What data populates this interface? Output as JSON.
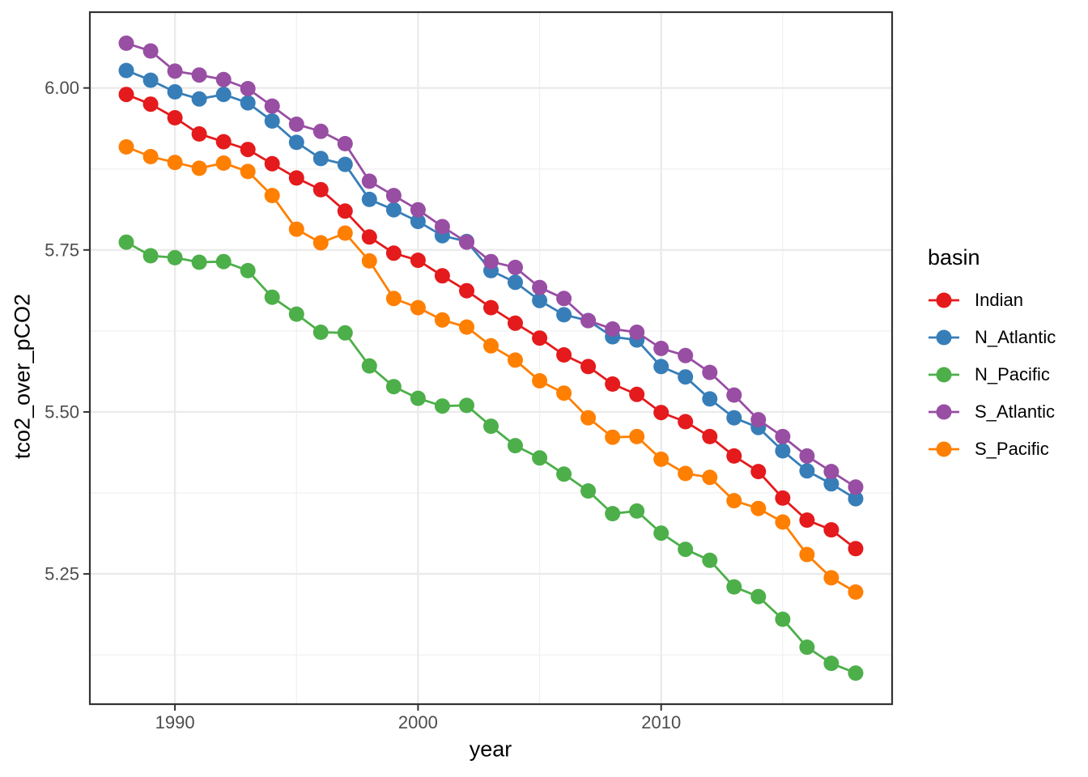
{
  "chart_data": {
    "type": "line",
    "title": "",
    "xlabel": "year",
    "ylabel": "tco2_over_pCO2",
    "legend_title": "basin",
    "legend_position": "right",
    "grid": true,
    "xlim": [
      1986.5,
      2019.5
    ],
    "ylim": [
      5.049,
      6.117
    ],
    "x_ticks": [
      1990,
      2000,
      2010
    ],
    "x_tick_labels": [
      "1990",
      "2000",
      "2010"
    ],
    "x_minor_ticks": [
      1995,
      2005,
      2015
    ],
    "y_ticks": [
      5.25,
      5.5,
      5.75,
      6.0
    ],
    "y_tick_labels": [
      "5.25",
      "5.50",
      "5.75",
      "6.00"
    ],
    "y_minor_ticks": [
      5.125,
      5.375,
      5.625,
      5.875
    ],
    "x": [
      1988,
      1989,
      1990,
      1991,
      1992,
      1993,
      1994,
      1995,
      1996,
      1997,
      1998,
      1999,
      2000,
      2001,
      2002,
      2003,
      2004,
      2005,
      2006,
      2007,
      2008,
      2009,
      2010,
      2011,
      2012,
      2013,
      2014,
      2015,
      2016,
      2017,
      2018
    ],
    "series": [
      {
        "name": "Indian",
        "color": "#E41A1C",
        "values": [
          5.99,
          5.975,
          5.954,
          5.929,
          5.917,
          5.905,
          5.883,
          5.861,
          5.843,
          5.81,
          5.77,
          5.745,
          5.734,
          5.71,
          5.687,
          5.661,
          5.637,
          5.614,
          5.588,
          5.57,
          5.543,
          5.527,
          5.499,
          5.485,
          5.462,
          5.432,
          5.408,
          5.367,
          5.333,
          5.318,
          5.289
        ]
      },
      {
        "name": "N_Atlantic",
        "color": "#377EB8",
        "values": [
          6.027,
          6.012,
          5.994,
          5.983,
          5.99,
          5.977,
          5.949,
          5.916,
          5.891,
          5.882,
          5.828,
          5.812,
          5.794,
          5.772,
          5.763,
          5.718,
          5.7,
          5.672,
          5.65,
          5.641,
          5.616,
          5.611,
          5.57,
          5.554,
          5.52,
          5.491,
          5.476,
          5.44,
          5.409,
          5.389,
          5.366
        ]
      },
      {
        "name": "N_Pacific",
        "color": "#4DAF4A",
        "values": [
          5.762,
          5.741,
          5.738,
          5.731,
          5.732,
          5.718,
          5.677,
          5.651,
          5.623,
          5.622,
          5.571,
          5.539,
          5.521,
          5.509,
          5.51,
          5.478,
          5.448,
          5.429,
          5.404,
          5.378,
          5.343,
          5.347,
          5.313,
          5.288,
          5.271,
          5.23,
          5.215,
          5.18,
          5.137,
          5.112,
          5.097
        ]
      },
      {
        "name": "S_Atlantic",
        "color": "#984EA3",
        "values": [
          6.069,
          6.057,
          6.026,
          6.02,
          6.013,
          5.999,
          5.972,
          5.944,
          5.933,
          5.914,
          5.856,
          5.834,
          5.812,
          5.786,
          5.762,
          5.732,
          5.723,
          5.692,
          5.675,
          5.641,
          5.628,
          5.623,
          5.598,
          5.587,
          5.561,
          5.526,
          5.488,
          5.462,
          5.432,
          5.408,
          5.384
        ]
      },
      {
        "name": "S_Pacific",
        "color": "#FF7F00",
        "values": [
          5.909,
          5.894,
          5.885,
          5.876,
          5.884,
          5.871,
          5.834,
          5.782,
          5.761,
          5.776,
          5.733,
          5.675,
          5.661,
          5.642,
          5.631,
          5.602,
          5.58,
          5.548,
          5.529,
          5.491,
          5.461,
          5.462,
          5.427,
          5.405,
          5.399,
          5.363,
          5.351,
          5.33,
          5.28,
          5.244,
          5.222
        ]
      }
    ],
    "theme": {
      "panel_background": "#ffffff",
      "panel_border": "#333333",
      "grid_major": "#EBEBEB",
      "grid_minor": "#F0F0F0",
      "tick_color": "#333333",
      "tick_label_color": "#4D4D4D"
    }
  }
}
